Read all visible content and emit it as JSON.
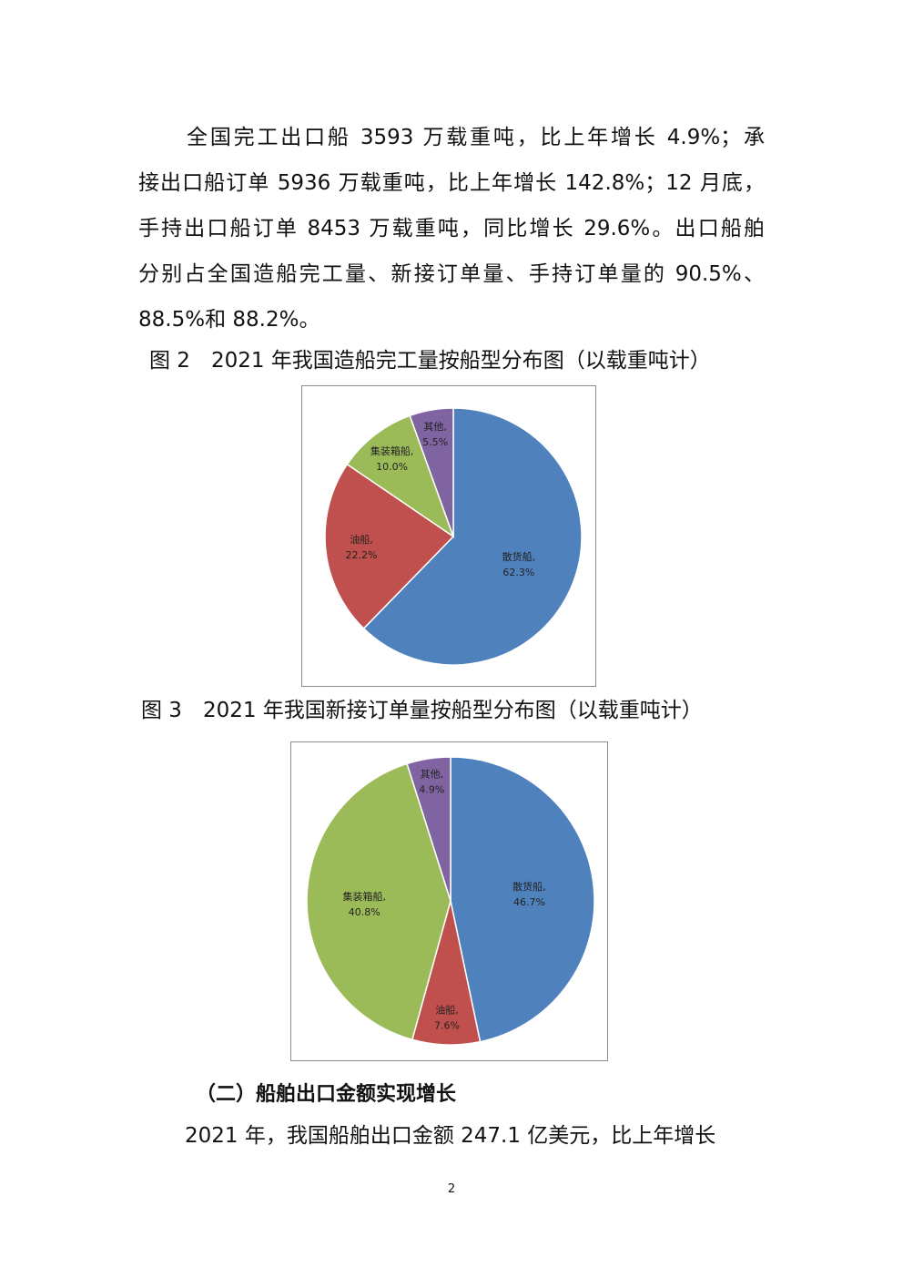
{
  "paragraph1": {
    "lines": [
      "全国完工出口船 3593 万载重吨，比上年增长 4.9%；承",
      "接出口船订单 5936 万载重吨，比上年增长 142.8%；12 月底，",
      "手持出口船订单 8453 万载重吨，同比增长 29.6%。出口船舶",
      "分别占全国造船完工量、新接订单量、手持订单量的 90.5%、",
      "88.5%和 88.2%。"
    ]
  },
  "chart_data": [
    {
      "type": "pie",
      "title": "图 2　2021 年我国造船完工量按船型分布图（以载重吨计）",
      "categories": [
        "散货船",
        "油船",
        "集装箱船",
        "其他"
      ],
      "values": [
        62.3,
        22.2,
        10.0,
        5.5
      ],
      "labels": [
        "62.3%",
        "22.2%",
        "10.0%",
        "5.5%"
      ],
      "colors": [
        "#4f81bd",
        "#c0504d",
        "#9bbb59",
        "#8064a2"
      ]
    },
    {
      "type": "pie",
      "title": "图 3　2021 年我国新接订单量按船型分布图（以载重吨计）",
      "categories": [
        "散货船",
        "油船",
        "集装箱船",
        "其他"
      ],
      "values": [
        46.7,
        7.6,
        40.8,
        4.9
      ],
      "labels": [
        "46.7%",
        "7.6%",
        "40.8%",
        "4.9%"
      ],
      "colors": [
        "#4f81bd",
        "#c0504d",
        "#9bbb59",
        "#8064a2"
      ]
    }
  ],
  "heading": "（二）船舶出口金额实现增长",
  "paragraph2": "2021 年，我国船舶出口金额 247.1 亿美元，比上年增长",
  "page_number": "2"
}
